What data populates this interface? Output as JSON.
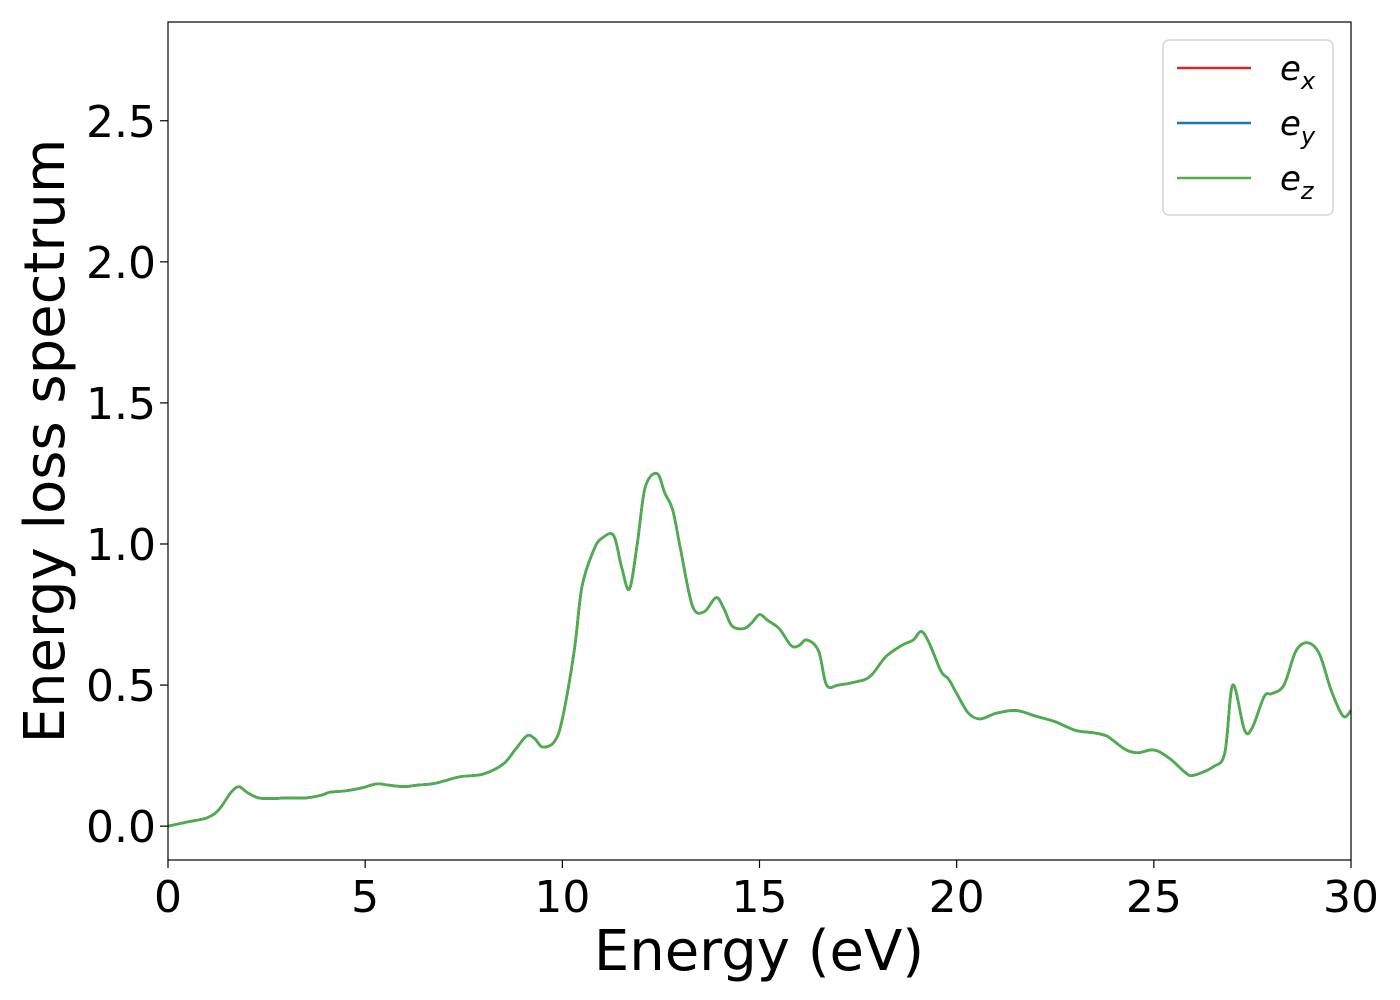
{
  "chart_data": {
    "type": "line",
    "title": "",
    "xlabel": "Energy (eV)",
    "ylabel": "Energy loss spectrum",
    "xlim": [
      0,
      30
    ],
    "ylim": [
      -0.12,
      2.85
    ],
    "xticks": [
      0,
      5,
      10,
      15,
      20,
      25,
      30
    ],
    "xtick_labels": [
      "0",
      "5",
      "10",
      "15",
      "20",
      "25",
      "30"
    ],
    "yticks": [
      0.0,
      0.5,
      1.0,
      1.5,
      2.0,
      2.5
    ],
    "ytick_labels": [
      "0.0",
      "0.5",
      "1.0",
      "1.5",
      "2.0",
      "2.5"
    ],
    "grid": false,
    "legend_position": "top-right",
    "x": [
      0,
      0.5,
      1.0,
      1.3,
      1.6,
      1.8,
      2.0,
      2.3,
      2.7,
      3.0,
      3.5,
      3.9,
      4.1,
      4.5,
      4.9,
      5.3,
      5.6,
      6.0,
      6.3,
      6.7,
      7.0,
      7.4,
      8.0,
      8.5,
      8.8,
      9.1,
      9.3,
      9.5,
      9.8,
      10.0,
      10.3,
      10.5,
      10.8,
      11.0,
      11.3,
      11.5,
      11.7,
      11.9,
      12.1,
      12.4,
      12.6,
      12.8,
      13.0,
      13.3,
      13.6,
      13.9,
      14.1,
      14.3,
      14.6,
      14.8,
      15.0,
      15.2,
      15.5,
      15.8,
      16.0,
      16.2,
      16.5,
      16.7,
      17.0,
      17.4,
      17.8,
      18.2,
      18.6,
      18.9,
      19.1,
      19.3,
      19.6,
      19.8,
      20.0,
      20.3,
      20.6,
      21.0,
      21.5,
      22.0,
      22.5,
      23.0,
      23.5,
      23.8,
      24.0,
      24.3,
      24.6,
      25.0,
      25.4,
      25.8,
      26.0,
      26.5,
      26.8,
      27.0,
      27.3,
      27.5,
      27.8,
      28.0,
      28.3,
      28.6,
      28.9,
      29.2,
      29.5,
      29.8,
      30.0
    ],
    "series": [
      {
        "name": "e_x",
        "color": "#d62728",
        "y": [
          0.0,
          0.015,
          0.03,
          0.06,
          0.12,
          0.14,
          0.12,
          0.1,
          0.098,
          0.1,
          0.1,
          0.11,
          0.12,
          0.125,
          0.135,
          0.15,
          0.145,
          0.14,
          0.145,
          0.15,
          0.16,
          0.175,
          0.185,
          0.22,
          0.27,
          0.32,
          0.31,
          0.28,
          0.3,
          0.38,
          0.62,
          0.85,
          0.98,
          1.02,
          1.03,
          0.92,
          0.84,
          1.0,
          1.2,
          1.25,
          1.18,
          1.12,
          0.98,
          0.78,
          0.76,
          0.81,
          0.77,
          0.71,
          0.7,
          0.72,
          0.75,
          0.73,
          0.7,
          0.64,
          0.64,
          0.66,
          0.62,
          0.5,
          0.5,
          0.51,
          0.53,
          0.6,
          0.64,
          0.66,
          0.69,
          0.65,
          0.55,
          0.52,
          0.47,
          0.4,
          0.38,
          0.4,
          0.41,
          0.39,
          0.37,
          0.34,
          0.33,
          0.32,
          0.3,
          0.27,
          0.26,
          0.27,
          0.24,
          0.19,
          0.18,
          0.21,
          0.26,
          0.5,
          0.34,
          0.35,
          0.46,
          0.47,
          0.5,
          0.62,
          0.65,
          0.61,
          0.48,
          0.39,
          0.41
        ]
      },
      {
        "name": "e_y",
        "color": "#1f77b4",
        "y": [
          0.0,
          0.015,
          0.03,
          0.06,
          0.12,
          0.14,
          0.12,
          0.1,
          0.098,
          0.1,
          0.1,
          0.11,
          0.12,
          0.125,
          0.135,
          0.15,
          0.145,
          0.14,
          0.145,
          0.15,
          0.16,
          0.175,
          0.185,
          0.22,
          0.27,
          0.32,
          0.31,
          0.28,
          0.3,
          0.38,
          0.62,
          0.85,
          0.98,
          1.02,
          1.03,
          0.92,
          0.84,
          1.0,
          1.2,
          1.25,
          1.18,
          1.12,
          0.98,
          0.78,
          0.76,
          0.81,
          0.77,
          0.71,
          0.7,
          0.72,
          0.75,
          0.73,
          0.7,
          0.64,
          0.64,
          0.66,
          0.62,
          0.5,
          0.5,
          0.51,
          0.53,
          0.6,
          0.64,
          0.66,
          0.69,
          0.65,
          0.55,
          0.52,
          0.47,
          0.4,
          0.38,
          0.4,
          0.41,
          0.39,
          0.37,
          0.34,
          0.33,
          0.32,
          0.3,
          0.27,
          0.26,
          0.27,
          0.24,
          0.19,
          0.18,
          0.21,
          0.26,
          0.5,
          0.34,
          0.35,
          0.46,
          0.47,
          0.5,
          0.62,
          0.65,
          0.61,
          0.48,
          0.39,
          0.41
        ]
      },
      {
        "name": "e_z",
        "color": "#4daf4a",
        "y": [
          0.0,
          0.015,
          0.03,
          0.06,
          0.12,
          0.14,
          0.12,
          0.1,
          0.098,
          0.1,
          0.1,
          0.11,
          0.12,
          0.125,
          0.135,
          0.15,
          0.145,
          0.14,
          0.145,
          0.15,
          0.16,
          0.175,
          0.185,
          0.22,
          0.27,
          0.32,
          0.31,
          0.28,
          0.3,
          0.38,
          0.62,
          0.85,
          0.98,
          1.02,
          1.03,
          0.92,
          0.84,
          1.0,
          1.2,
          1.25,
          1.18,
          1.12,
          0.98,
          0.78,
          0.76,
          0.81,
          0.77,
          0.71,
          0.7,
          0.72,
          0.75,
          0.73,
          0.7,
          0.64,
          0.64,
          0.66,
          0.62,
          0.5,
          0.5,
          0.51,
          0.53,
          0.6,
          0.64,
          0.66,
          0.69,
          0.65,
          0.55,
          0.52,
          0.47,
          0.4,
          0.38,
          0.4,
          0.41,
          0.39,
          0.37,
          0.34,
          0.33,
          0.32,
          0.3,
          0.27,
          0.26,
          0.27,
          0.24,
          0.19,
          0.18,
          0.21,
          0.26,
          0.5,
          0.34,
          0.35,
          0.46,
          0.47,
          0.5,
          0.62,
          0.65,
          0.61,
          0.48,
          0.39,
          0.41
        ]
      }
    ],
    "legend": [
      {
        "base": "e",
        "sub": "x",
        "color": "#d62728"
      },
      {
        "base": "e",
        "sub": "y",
        "color": "#1f77b4"
      },
      {
        "base": "e",
        "sub": "z",
        "color": "#4daf4a"
      }
    ]
  }
}
